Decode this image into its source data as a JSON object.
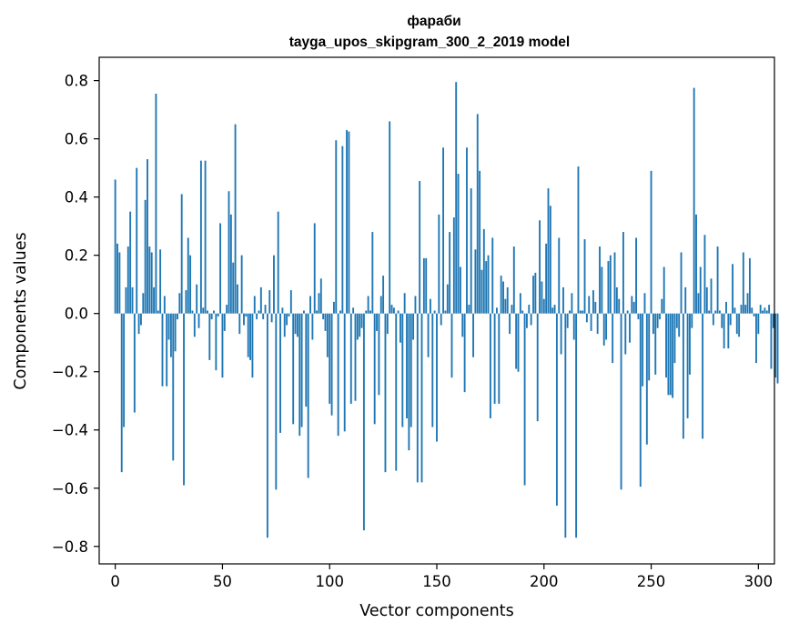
{
  "chart_data": {
    "type": "bar",
    "title": "фараби",
    "subtitle": "tayga_upos_skipgram_300_2_2019 model",
    "xlabel": "Vector components",
    "ylabel": "Components values",
    "xlim": [
      -7.5,
      307.5
    ],
    "ylim": [
      -0.86,
      0.88
    ],
    "xticks": [
      0,
      50,
      100,
      150,
      200,
      250,
      300
    ],
    "yticks": [
      -0.8,
      -0.6,
      -0.4,
      -0.2,
      0.0,
      0.2,
      0.4,
      0.6,
      0.8
    ],
    "ytick_labels": [
      "−0.8",
      "−0.6",
      "−0.4",
      "−0.2",
      "0.0",
      "0.2",
      "0.4",
      "0.6",
      "0.8"
    ],
    "bar_color": "#1f77b4",
    "values": [
      0.46,
      0.24,
      0.21,
      -0.545,
      -0.39,
      0.09,
      0.23,
      0.35,
      0.09,
      -0.34,
      0.5,
      -0.07,
      -0.04,
      0.07,
      0.39,
      0.53,
      0.23,
      0.21,
      0.09,
      0.755,
      0.01,
      0.22,
      -0.25,
      0.06,
      -0.25,
      -0.09,
      -0.15,
      -0.505,
      -0.13,
      -0.02,
      0.07,
      0.41,
      -0.59,
      0.08,
      0.26,
      0.2,
      0.01,
      -0.08,
      0.1,
      -0.05,
      0.525,
      0.02,
      0.525,
      0.01,
      -0.16,
      -0.02,
      0.01,
      -0.195,
      -0.01,
      0.31,
      -0.22,
      -0.06,
      0.03,
      0.42,
      0.34,
      0.175,
      0.65,
      0.1,
      -0.07,
      0.2,
      -0.04,
      -0.01,
      -0.15,
      -0.16,
      -0.22,
      0.06,
      -0.02,
      0.01,
      0.09,
      -0.02,
      0.03,
      -0.77,
      0.08,
      -0.03,
      0.2,
      -0.605,
      0.35,
      -0.41,
      0.02,
      -0.08,
      -0.04,
      -0.01,
      0.08,
      -0.38,
      -0.07,
      -0.08,
      -0.42,
      -0.39,
      0.01,
      -0.32,
      -0.565,
      0.06,
      -0.09,
      0.31,
      0.01,
      0.07,
      0.12,
      -0.02,
      -0.06,
      -0.15,
      -0.31,
      -0.35,
      0.04,
      0.595,
      -0.42,
      0.01,
      0.575,
      -0.405,
      0.63,
      0.625,
      -0.31,
      0.02,
      -0.3,
      -0.09,
      -0.08,
      -0.05,
      -0.745,
      0.01,
      0.06,
      0.01,
      0.28,
      -0.38,
      -0.06,
      -0.28,
      0.06,
      0.13,
      -0.545,
      -0.07,
      0.66,
      0.03,
      0.02,
      -0.54,
      0.01,
      -0.1,
      -0.39,
      0.07,
      -0.36,
      -0.47,
      -0.39,
      -0.09,
      0.06,
      -0.58,
      0.455,
      -0.58,
      0.19,
      0.19,
      -0.15,
      0.05,
      -0.39,
      0.01,
      -0.44,
      0.34,
      -0.04,
      0.57,
      0.01,
      0.1,
      0.28,
      -0.22,
      0.33,
      0.795,
      0.48,
      0.16,
      -0.08,
      -0.27,
      0.57,
      0.03,
      0.43,
      -0.15,
      0.22,
      0.685,
      0.49,
      0.15,
      0.29,
      0.18,
      0.2,
      -0.36,
      0.26,
      -0.31,
      0.02,
      -0.31,
      0.13,
      0.11,
      0.05,
      0.09,
      -0.07,
      0.03,
      0.23,
      -0.19,
      -0.2,
      0.07,
      0.01,
      -0.59,
      -0.05,
      0.03,
      -0.04,
      0.13,
      0.14,
      -0.37,
      0.32,
      0.11,
      0.05,
      0.24,
      0.43,
      0.37,
      0.02,
      0.03,
      -0.66,
      0.26,
      -0.14,
      0.09,
      -0.77,
      -0.05,
      0.01,
      0.07,
      -0.09,
      -0.77,
      0.505,
      0.01,
      0.01,
      0.255,
      -0.03,
      0.06,
      -0.06,
      0.08,
      0.04,
      -0.07,
      0.23,
      0.16,
      -0.11,
      -0.09,
      0.18,
      0.2,
      -0.17,
      0.21,
      0.09,
      0.05,
      -0.605,
      0.28,
      -0.14,
      0.01,
      -0.1,
      0.06,
      0.04,
      0.26,
      -0.02,
      -0.595,
      -0.25,
      0.07,
      -0.45,
      -0.23,
      0.49,
      -0.07,
      -0.21,
      -0.05,
      -0.02,
      0.05,
      0.16,
      -0.22,
      -0.28,
      -0.28,
      -0.29,
      -0.17,
      -0.05,
      -0.08,
      0.21,
      -0.43,
      0.09,
      -0.36,
      -0.21,
      -0.05,
      0.775,
      0.34,
      0.07,
      0.16,
      -0.43,
      0.27,
      0.09,
      0.01,
      0.12,
      -0.04,
      0.01,
      0.23,
      0.01,
      -0.05,
      -0.12,
      0.04,
      -0.12,
      -0.04,
      0.17,
      0.02,
      -0.07,
      -0.08,
      0.03,
      0.21,
      0.03,
      0.07,
      0.19,
      0.02,
      -0.01,
      -0.17,
      -0.07,
      0.03,
      0.01,
      0.02,
      0.01,
      0.03,
      -0.19,
      -0.05,
      -0.22,
      -0.24
    ]
  }
}
